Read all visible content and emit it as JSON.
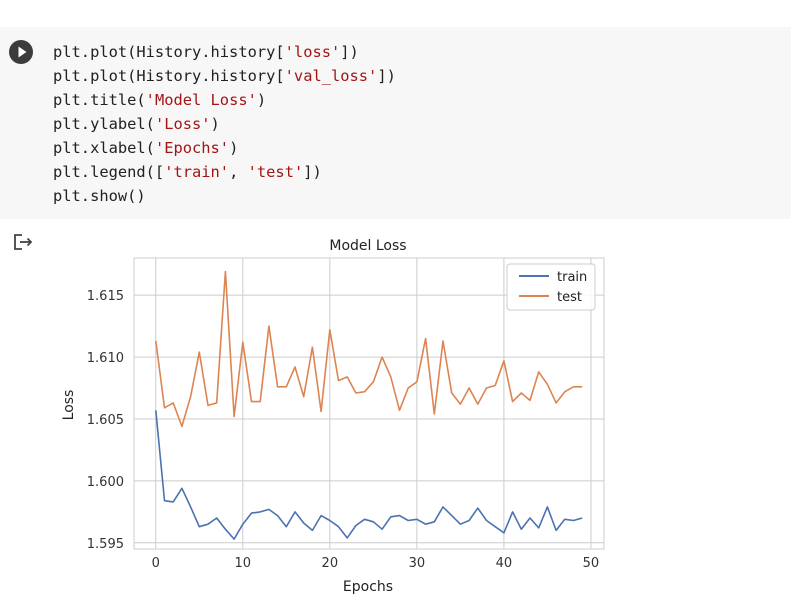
{
  "code_cell": {
    "lines": [
      [
        {
          "t": "plt.plot(History.history["
        },
        {
          "t": "'loss'",
          "s": 1
        },
        {
          "t": "])"
        }
      ],
      [
        {
          "t": "plt.plot(History.history["
        },
        {
          "t": "'val_loss'",
          "s": 1
        },
        {
          "t": "])"
        }
      ],
      [
        {
          "t": "plt.title("
        },
        {
          "t": "'Model Loss'",
          "s": 1
        },
        {
          "t": ")"
        }
      ],
      [
        {
          "t": "plt.ylabel("
        },
        {
          "t": "'Loss'",
          "s": 1
        },
        {
          "t": ")"
        }
      ],
      [
        {
          "t": "plt.xlabel("
        },
        {
          "t": "'Epochs'",
          "s": 1
        },
        {
          "t": ")"
        }
      ],
      [
        {
          "t": "plt.legend(["
        },
        {
          "t": "'train'",
          "s": 1
        },
        {
          "t": ", "
        },
        {
          "t": "'test'",
          "s": 1
        },
        {
          "t": "])"
        }
      ],
      [
        {
          "t": "plt.show()"
        }
      ]
    ]
  },
  "icons": {
    "run": "play-icon",
    "output": "output-arrow-icon"
  },
  "colors": {
    "train": "#4c72b0",
    "test": "#dd8452",
    "string": "#a31515"
  },
  "chart_data": {
    "type": "line",
    "title": "Model Loss",
    "xlabel": "Epochs",
    "ylabel": "Loss",
    "xlim": [
      -2.5,
      51.5
    ],
    "ylim": [
      1.5945,
      1.618
    ],
    "xticks": [
      0,
      10,
      20,
      30,
      40,
      50
    ],
    "yticks": [
      1.595,
      1.6,
      1.605,
      1.61,
      1.615
    ],
    "ytick_labels": [
      "1.595",
      "1.600",
      "1.605",
      "1.610",
      "1.615"
    ],
    "grid": true,
    "legend_position": "top-right",
    "x": [
      0,
      1,
      2,
      3,
      4,
      5,
      6,
      7,
      8,
      9,
      10,
      11,
      12,
      13,
      14,
      15,
      16,
      17,
      18,
      19,
      20,
      21,
      22,
      23,
      24,
      25,
      26,
      27,
      28,
      29,
      30,
      31,
      32,
      33,
      34,
      35,
      36,
      37,
      38,
      39,
      40,
      41,
      42,
      43,
      44,
      45,
      46,
      47,
      48,
      49
    ],
    "series": [
      {
        "name": "train",
        "values": [
          1.6057,
          1.5984,
          1.5983,
          1.5994,
          1.5979,
          1.5963,
          1.5965,
          1.597,
          1.5961,
          1.5953,
          1.5965,
          1.5974,
          1.5975,
          1.5977,
          1.5972,
          1.5963,
          1.5975,
          1.5966,
          1.596,
          1.5972,
          1.5968,
          1.5963,
          1.5954,
          1.5964,
          1.5969,
          1.5967,
          1.5961,
          1.5971,
          1.5972,
          1.5968,
          1.5969,
          1.5965,
          1.5967,
          1.5979,
          1.5972,
          1.5965,
          1.5968,
          1.5978,
          1.5968,
          1.5963,
          1.5958,
          1.5975,
          1.5961,
          1.597,
          1.5962,
          1.5979,
          1.596,
          1.5969,
          1.5968,
          1.597
        ]
      },
      {
        "name": "test",
        "values": [
          1.6113,
          1.6059,
          1.6063,
          1.6044,
          1.6068,
          1.6104,
          1.6061,
          1.6063,
          1.6169,
          1.6052,
          1.6112,
          1.6064,
          1.6064,
          1.6125,
          1.6076,
          1.6076,
          1.6092,
          1.6068,
          1.6108,
          1.6056,
          1.6122,
          1.6081,
          1.6084,
          1.6071,
          1.6072,
          1.608,
          1.61,
          1.6084,
          1.6057,
          1.6075,
          1.608,
          1.6115,
          1.6054,
          1.6113,
          1.6071,
          1.6062,
          1.6075,
          1.6062,
          1.6075,
          1.6077,
          1.6097,
          1.6064,
          1.6071,
          1.6065,
          1.6088,
          1.6078,
          1.6063,
          1.6072,
          1.6076,
          1.6076
        ]
      }
    ]
  }
}
